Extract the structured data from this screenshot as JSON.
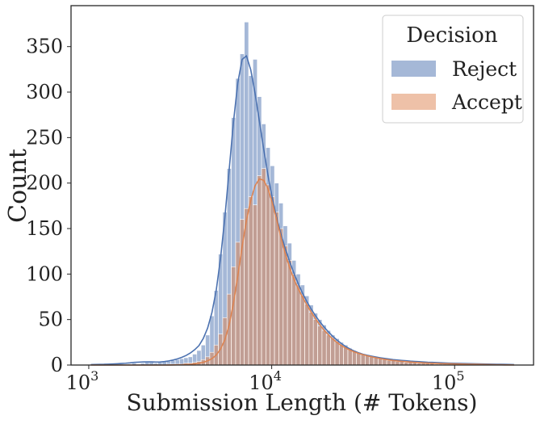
{
  "chart_data": {
    "type": "histogram",
    "xscale": "log",
    "xlabel": "Submission Length (# Tokens)",
    "ylabel": "Count",
    "xlim": [
      800,
      270000
    ],
    "ylim": [
      0,
      395
    ],
    "x_ticks": [
      {
        "value": 1000,
        "base": "10",
        "exp": "3"
      },
      {
        "value": 10000,
        "base": "10",
        "exp": "4"
      },
      {
        "value": 100000,
        "base": "10",
        "exp": "5"
      }
    ],
    "y_ticks": [
      0,
      50,
      100,
      150,
      200,
      250,
      300,
      350
    ],
    "legend": {
      "title": "Decision",
      "position": "upper right"
    },
    "bin_edges": [
      1000,
      1056,
      1115,
      1178,
      1244,
      1313,
      1387,
      1464,
      1546,
      1633,
      1724,
      1820,
      1922,
      2029,
      2143,
      2262,
      2389,
      2522,
      2663,
      2812,
      2969,
      3135,
      3310,
      3495,
      3690,
      3896,
      4114,
      4343,
      4586,
      4842,
      5112,
      5398,
      5699,
      6017,
      6353,
      6708,
      7083,
      7478,
      7895,
      8336,
      8801,
      9293,
      9811,
      10359,
      10937,
      11548,
      12193,
      12874,
      13592,
      14351,
      15152,
      15998,
      16891,
      17834,
      18830,
      19881,
      20991,
      22163,
      23401,
      24707,
      26087,
      27543,
      29081,
      30704,
      32419,
      34229,
      36140,
      38158,
      40288,
      42537,
      44912,
      47420,
      50067,
      52863,
      55814,
      58930,
      62220,
      65694,
      69362,
      73235,
      77323,
      81641,
      86199,
      91011,
      96093,
      101458,
      107122,
      113103,
      119418,
      126085,
      133125,
      140557,
      148405,
      156690,
      165438,
      174675,
      184427,
      194724,
      205596,
      217074
    ],
    "series": [
      {
        "name": "Reject",
        "color": "#4c72b0",
        "values": [
          0,
          1,
          0,
          1,
          1,
          0,
          1,
          1,
          0,
          1,
          2,
          1,
          2,
          3,
          3,
          2,
          3,
          4,
          4,
          5,
          6,
          7,
          8,
          9,
          12,
          16,
          22,
          33,
          54,
          82,
          122,
          168,
          216,
          272,
          315,
          342,
          377,
          318,
          336,
          295,
          265,
          239,
          219,
          200,
          178,
          153,
          134,
          115,
          100,
          88,
          76,
          66,
          57,
          50,
          44,
          38,
          33,
          29,
          25,
          22,
          19,
          16,
          14,
          12,
          11,
          9,
          8,
          7,
          6,
          6,
          5,
          4,
          4,
          3,
          3,
          3,
          2,
          2,
          2,
          2,
          1,
          1,
          1,
          1,
          1,
          1,
          1,
          0,
          1,
          0,
          1,
          0,
          0,
          0,
          1,
          0,
          0,
          0,
          0
        ],
        "kde": [
          0.5,
          0.6,
          0.7,
          0.8,
          1.0,
          1.2,
          1.4,
          1.7,
          2.0,
          2.4,
          2.9,
          3.2,
          3.4,
          3.5,
          3.5,
          3.3,
          3.4,
          3.8,
          4.5,
          5.5,
          6.8,
          8.4,
          10.5,
          13.2,
          16.8,
          21.4,
          29.2,
          40.5,
          57.6,
          82.2,
          117.5,
          162.2,
          214.8,
          267.4,
          310.4,
          335.9,
          339.8,
          324.5,
          298.6,
          268.1,
          237.0,
          208.3,
          183.3,
          162.0,
          143.8,
          128.0,
          113.8,
          101.0,
          89.4,
          79.0,
          69.7,
          61.5,
          54.2,
          47.6,
          41.7,
          36.4,
          31.6,
          27.3,
          23.6,
          20.3,
          17.6,
          15.3,
          13.4,
          11.9,
          10.7,
          9.7,
          8.8,
          8.0,
          7.3,
          6.6,
          6.0,
          5.5,
          5.1,
          4.7,
          4.3,
          4.0,
          3.7,
          3.4,
          3.1,
          2.9,
          2.7,
          2.5,
          2.3,
          2.1,
          2.0,
          1.8,
          1.7,
          1.6,
          1.5,
          1.4,
          1.3,
          1.2,
          1.1,
          1.0,
          0.9,
          0.8,
          0.7,
          0.6,
          0.5
        ]
      },
      {
        "name": "Accept",
        "color": "#dd8452",
        "values": [
          0,
          0,
          0,
          0,
          0,
          0,
          0,
          0,
          0,
          0,
          0,
          0,
          0,
          0,
          0,
          0,
          0,
          0,
          1,
          1,
          1,
          1,
          2,
          2,
          3,
          4,
          6,
          9,
          14,
          22,
          34,
          52,
          78,
          108,
          135,
          160,
          172,
          185,
          176,
          208,
          216,
          198,
          185,
          168,
          150,
          131,
          115,
          100,
          88,
          77,
          67,
          58,
          50,
          43,
          38,
          33,
          30,
          26,
          23,
          20,
          18,
          15,
          13,
          12,
          10,
          9,
          8,
          7,
          6,
          5,
          5,
          4,
          4,
          3,
          3,
          3,
          2,
          2,
          2,
          2,
          1,
          1,
          1,
          1,
          1,
          1,
          2,
          1,
          1,
          1,
          1,
          0,
          0,
          0,
          1,
          0,
          0,
          0,
          0
        ],
        "kde": [
          0,
          0,
          0,
          0,
          0,
          0,
          0,
          0,
          0,
          0,
          0,
          0,
          0,
          0,
          0,
          0,
          0,
          0,
          0.1,
          0.2,
          0.3,
          0.4,
          0.6,
          0.9,
          1.3,
          2.0,
          3.0,
          4.6,
          7.0,
          11.0,
          17.5,
          27.8,
          44.2,
          68.1,
          98.2,
          130.1,
          158.8,
          181.2,
          197.1,
          204.6,
          203.0,
          193.8,
          178.4,
          159.7,
          140.3,
          122.4,
          107.0,
          94.4,
          83.8,
          74.6,
          66.1,
          58.2,
          50.9,
          44.3,
          38.3,
          33.1,
          28.6,
          24.7,
          21.4,
          18.7,
          16.4,
          14.4,
          12.8,
          11.4,
          10.1,
          9.0,
          8.0,
          7.1,
          6.3,
          5.6,
          5.0,
          4.5,
          4.1,
          3.7,
          3.3,
          3.0,
          2.7,
          2.4,
          2.2,
          2.0,
          1.8,
          1.6,
          1.5,
          1.4,
          1.3,
          1.2,
          1.1,
          1.0,
          0.9,
          0.8,
          0.7,
          0.6,
          0.5,
          0.4,
          0.3,
          0.3,
          0.2,
          0.2,
          0.1
        ]
      }
    ]
  }
}
